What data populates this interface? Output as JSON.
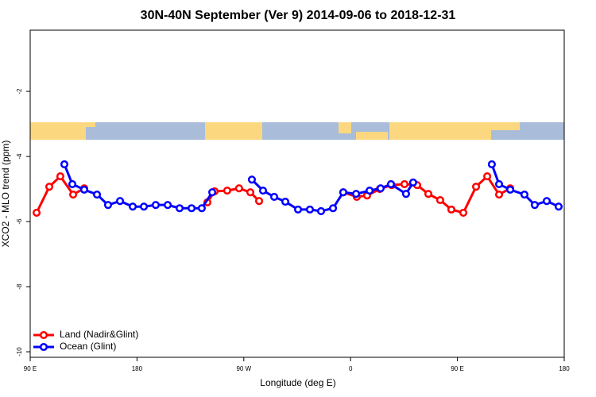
{
  "chart_data": {
    "type": "line",
    "title": "30N-40N September (Ver 9)   2014-09-06 to 2018-12-31",
    "x_label": "Longitude (deg E)",
    "y_label": "XCO2 - MLO trend (ppm)",
    "xlim": [
      90,
      540
    ],
    "ylim": [
      -10.17,
      -0.12
    ],
    "xticks": [
      {
        "value": 90,
        "label": "90 E"
      },
      180,
      {
        "value": 270,
        "label": "90 W"
      },
      {
        "value": 360,
        "label": "0"
      },
      {
        "value": 450,
        "label": "90 E"
      },
      {
        "value": 540,
        "label": "180"
      }
    ],
    "yticks": [
      -2,
      -4,
      -6,
      -8,
      -10
    ],
    "legend": "bottom-left",
    "series": [
      {
        "name": "Land (Nadir&Glint)",
        "color": "#ff0000",
        "x": [
          95.4,
          106.1,
          115.4,
          126.2,
          135.5,
          null,
          239.3,
          245.4,
          256.0,
          266.0,
          275.5,
          282.9,
          null,
          353.8,
          365.2,
          373.9,
          384.6,
          394.7,
          405.4,
          416.1,
          425.5,
          435.5,
          444.9,
          455.0,
          465.7,
          475.1,
          485.1,
          494.5
        ],
        "values": [
          -5.73,
          -4.93,
          -4.61,
          -5.17,
          -4.98,
          null,
          -5.41,
          -5.07,
          -5.05,
          -4.98,
          -5.1,
          -5.37,
          null,
          -5.1,
          -5.24,
          -5.2,
          -5.0,
          -4.88,
          -4.85,
          -4.88,
          -5.15,
          -5.34,
          -5.63,
          -5.73,
          -4.93,
          -4.61,
          -5.17,
          -4.98
        ]
      },
      {
        "name": "Ocean (Glint)",
        "color": "#0000ff",
        "x": [
          118.8,
          125.5,
          135.5,
          146.3,
          155.6,
          165.7,
          176.4,
          185.8,
          195.8,
          205.9,
          215.9,
          226.0,
          234.6,
          243.4,
          null,
          276.8,
          286.2,
          295.6,
          305.0,
          315.7,
          325.7,
          335.1,
          345.2,
          353.8,
          364.6,
          376.0,
          385.3,
          394.0,
          406.7,
          412.7,
          null,
          479.0,
          485.1,
          494.5,
          506.5,
          515.2,
          525.3,
          535.3
        ],
        "values": [
          -4.24,
          -4.85,
          -5.02,
          -5.17,
          -5.49,
          -5.37,
          -5.54,
          -5.54,
          -5.49,
          -5.49,
          -5.59,
          -5.59,
          -5.59,
          -5.1,
          null,
          -4.71,
          -5.05,
          -5.24,
          -5.39,
          -5.63,
          -5.63,
          -5.68,
          -5.59,
          -5.1,
          -5.15,
          -5.05,
          -4.98,
          -4.85,
          -5.15,
          -4.8,
          null,
          -4.24,
          -4.85,
          -5.02,
          -5.17,
          -5.49,
          -5.37,
          -5.54
        ]
      }
    ]
  }
}
